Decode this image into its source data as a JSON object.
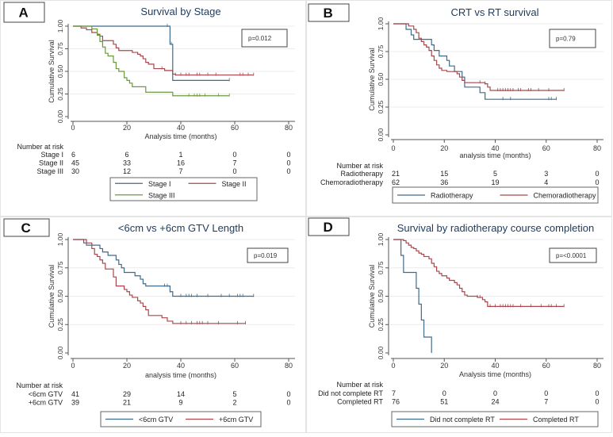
{
  "chart_data": [
    {
      "type": "line",
      "panel_label": "A",
      "title": "Survival by Stage",
      "xlabel": "Analysis time (months)",
      "ylabel": "Cumulative Survival",
      "xlim": [
        0,
        80
      ],
      "ylim": [
        0,
        1
      ],
      "xticks": [
        "0",
        "20",
        "40",
        "60",
        "80"
      ],
      "yticks": [
        "0.00",
        "0.25",
        "0.50",
        "0.75",
        "1.00"
      ],
      "p_value": "p=0.012",
      "risk_title": "Number at risk",
      "series": [
        {
          "name": "Stage I",
          "color": "#3f6b8c",
          "end": 58,
          "steps": [
            [
              0,
              1
            ],
            [
              36,
              0.8
            ],
            [
              37,
              0.4
            ]
          ],
          "censored": [
            35,
            36.5,
            58
          ],
          "at_risk": [
            "6",
            "6",
            "1",
            "0",
            "0"
          ]
        },
        {
          "name": "Stage II",
          "color": "#a9474c",
          "end": 67,
          "steps": [
            [
              0,
              1
            ],
            [
              3,
              0.98
            ],
            [
              5,
              0.96
            ],
            [
              7,
              0.93
            ],
            [
              9,
              0.91
            ],
            [
              10,
              0.89
            ],
            [
              11,
              0.84
            ],
            [
              15,
              0.8
            ],
            [
              16,
              0.76
            ],
            [
              17,
              0.73
            ],
            [
              22,
              0.71
            ],
            [
              24,
              0.69
            ],
            [
              25,
              0.67
            ],
            [
              26,
              0.64
            ],
            [
              27,
              0.6
            ],
            [
              28,
              0.58
            ],
            [
              30,
              0.53
            ],
            [
              34,
              0.51
            ],
            [
              37,
              0.47
            ],
            [
              38,
              0.46
            ]
          ],
          "censored": [
            33,
            38,
            40,
            42,
            43,
            46,
            47,
            50,
            53,
            62,
            63,
            65,
            67
          ],
          "at_risk": [
            "45",
            "33",
            "16",
            "7",
            "0"
          ]
        },
        {
          "name": "Stage III",
          "color": "#6b9a3c",
          "end": 58,
          "steps": [
            [
              0,
              1
            ],
            [
              7,
              0.97
            ],
            [
              9,
              0.9
            ],
            [
              10,
              0.83
            ],
            [
              11,
              0.77
            ],
            [
              12,
              0.7
            ],
            [
              13,
              0.67
            ],
            [
              15,
              0.6
            ],
            [
              16,
              0.53
            ],
            [
              17,
              0.5
            ],
            [
              19,
              0.43
            ],
            [
              20,
              0.4
            ],
            [
              21,
              0.37
            ],
            [
              22,
              0.33
            ],
            [
              27,
              0.27
            ],
            [
              37,
              0.23
            ]
          ],
          "censored": [
            43,
            45,
            46,
            47,
            49,
            54,
            58
          ],
          "at_risk": [
            "30",
            "12",
            "7",
            "0",
            "0"
          ]
        }
      ]
    },
    {
      "type": "line",
      "panel_label": "B",
      "title": "CRT vs RT survival",
      "xlabel": "analysis time (months)",
      "ylabel": "Cumulative Survival",
      "xlim": [
        0,
        80
      ],
      "ylim": [
        0,
        1
      ],
      "xticks": [
        "0",
        "20",
        "40",
        "60",
        "80"
      ],
      "yticks": [
        "0.00",
        "0.25",
        "0.50",
        "0.75",
        "1.00"
      ],
      "p_value": "p=0.79",
      "risk_title": "Number at risk",
      "series": [
        {
          "name": "Radiotherapy",
          "color": "#3f6b8c",
          "end": 64,
          "steps": [
            [
              0,
              1
            ],
            [
              5,
              0.95
            ],
            [
              7,
              0.9
            ],
            [
              8,
              0.86
            ],
            [
              15,
              0.81
            ],
            [
              16,
              0.76
            ],
            [
              18,
              0.71
            ],
            [
              21,
              0.67
            ],
            [
              22,
              0.62
            ],
            [
              24,
              0.57
            ],
            [
              27,
              0.52
            ],
            [
              28,
              0.43
            ],
            [
              34,
              0.38
            ],
            [
              36,
              0.32
            ]
          ],
          "censored": [
            43,
            46,
            61,
            62,
            64
          ],
          "at_risk": [
            "21",
            "15",
            "5",
            "3",
            "0"
          ]
        },
        {
          "name": "Chemoradiotherapy",
          "color": "#a9474c",
          "end": 67,
          "steps": [
            [
              0,
              1
            ],
            [
              6,
              0.98
            ],
            [
              8,
              0.95
            ],
            [
              9,
              0.92
            ],
            [
              10,
              0.87
            ],
            [
              11,
              0.84
            ],
            [
              12,
              0.81
            ],
            [
              13,
              0.79
            ],
            [
              14,
              0.76
            ],
            [
              15,
              0.71
            ],
            [
              16,
              0.67
            ],
            [
              17,
              0.63
            ],
            [
              18,
              0.6
            ],
            [
              19,
              0.58
            ],
            [
              21,
              0.57
            ],
            [
              25,
              0.55
            ],
            [
              26,
              0.52
            ],
            [
              27,
              0.49
            ],
            [
              28,
              0.47
            ],
            [
              36,
              0.46
            ],
            [
              37,
              0.43
            ],
            [
              38,
              0.4
            ]
          ],
          "censored": [
            34,
            36,
            41,
            42,
            43,
            44,
            45,
            46,
            47,
            49,
            50,
            53,
            54,
            57,
            61,
            67
          ],
          "at_risk": [
            "62",
            "36",
            "19",
            "4",
            "0"
          ]
        }
      ]
    },
    {
      "type": "line",
      "panel_label": "C",
      "title": "<6cm vs +6cm GTV Length",
      "xlabel": "analysis time (months)",
      "ylabel": "Cumulative Survival",
      "xlim": [
        0,
        80
      ],
      "ylim": [
        0,
        1
      ],
      "xticks": [
        "0",
        "20",
        "40",
        "60",
        "80"
      ],
      "yticks": [
        "0.00",
        "0.25",
        "0.50",
        "0.75",
        "1.00"
      ],
      "p_value": "p=0.019",
      "risk_title": "Number at risk",
      "series": [
        {
          "name": "<6cm GTV",
          "color": "#3f6b8c",
          "end": 67,
          "steps": [
            [
              0,
              1
            ],
            [
              4,
              0.97
            ],
            [
              5,
              0.95
            ],
            [
              10,
              0.92
            ],
            [
              11,
              0.89
            ],
            [
              13,
              0.86
            ],
            [
              16,
              0.82
            ],
            [
              17,
              0.78
            ],
            [
              18,
              0.75
            ],
            [
              19,
              0.71
            ],
            [
              23,
              0.68
            ],
            [
              25,
              0.65
            ],
            [
              26,
              0.61
            ],
            [
              27,
              0.59
            ],
            [
              36,
              0.54
            ],
            [
              37,
              0.5
            ]
          ],
          "censored": [
            34,
            35,
            36,
            40,
            42,
            43,
            44,
            46,
            50,
            55,
            58,
            61,
            62,
            63,
            67
          ],
          "at_risk": [
            "41",
            "29",
            "14",
            "5",
            "0"
          ]
        },
        {
          "name": "+6cm GTV",
          "color": "#a9474c",
          "end": 64,
          "steps": [
            [
              0,
              1
            ],
            [
              5,
              0.97
            ],
            [
              7,
              0.92
            ],
            [
              8,
              0.87
            ],
            [
              9,
              0.85
            ],
            [
              10,
              0.82
            ],
            [
              11,
              0.79
            ],
            [
              12,
              0.74
            ],
            [
              15,
              0.67
            ],
            [
              16,
              0.59
            ],
            [
              19,
              0.56
            ],
            [
              20,
              0.54
            ],
            [
              21,
              0.51
            ],
            [
              22,
              0.49
            ],
            [
              24,
              0.46
            ],
            [
              25,
              0.44
            ],
            [
              26,
              0.41
            ],
            [
              27,
              0.38
            ],
            [
              28,
              0.33
            ],
            [
              33,
              0.31
            ],
            [
              35,
              0.28
            ],
            [
              37,
              0.26
            ]
          ],
          "censored": [
            40,
            42,
            44,
            46,
            47,
            48,
            50,
            54,
            61,
            64
          ],
          "at_risk": [
            "39",
            "21",
            "9",
            "2",
            "0"
          ]
        }
      ]
    },
    {
      "type": "line",
      "panel_label": "D",
      "title": "Survival by radiotherapy course completion",
      "xlabel": "Analysis time (months)",
      "ylabel": "Cumulative Survival",
      "xlim": [
        0,
        80
      ],
      "ylim": [
        0,
        1
      ],
      "xticks": [
        "0",
        "20",
        "40",
        "60",
        "80"
      ],
      "yticks": [
        "0.00",
        "0.25",
        "0.50",
        "0.75",
        "1.00"
      ],
      "p_value": "p=<0.0001",
      "risk_title": "Number at risk",
      "series": [
        {
          "name": "Did not complete RT",
          "color": "#3f6b8c",
          "end": 15,
          "steps": [
            [
              0,
              1
            ],
            [
              3,
              0.86
            ],
            [
              4,
              0.71
            ],
            [
              9,
              0.57
            ],
            [
              10,
              0.43
            ],
            [
              11,
              0.29
            ],
            [
              12,
              0.14
            ],
            [
              15,
              0
            ]
          ],
          "censored": [],
          "at_risk": [
            "7",
            "0",
            "0",
            "0",
            "0"
          ]
        },
        {
          "name": "Completed RT",
          "color": "#a9474c",
          "end": 67,
          "steps": [
            [
              0,
              1
            ],
            [
              4,
              0.99
            ],
            [
              5,
              0.97
            ],
            [
              6,
              0.95
            ],
            [
              7,
              0.93
            ],
            [
              8,
              0.92
            ],
            [
              9,
              0.9
            ],
            [
              10,
              0.88
            ],
            [
              11,
              0.87
            ],
            [
              12,
              0.85
            ],
            [
              14,
              0.83
            ],
            [
              15,
              0.79
            ],
            [
              16,
              0.76
            ],
            [
              17,
              0.72
            ],
            [
              18,
              0.7
            ],
            [
              19,
              0.68
            ],
            [
              21,
              0.66
            ],
            [
              22,
              0.64
            ],
            [
              24,
              0.62
            ],
            [
              25,
              0.6
            ],
            [
              26,
              0.57
            ],
            [
              27,
              0.54
            ],
            [
              28,
              0.51
            ],
            [
              29,
              0.5
            ],
            [
              33,
              0.49
            ],
            [
              35,
              0.47
            ],
            [
              36,
              0.45
            ],
            [
              37,
              0.41
            ]
          ],
          "censored": [
            33,
            34,
            38,
            40,
            42,
            43,
            44,
            45,
            46,
            47,
            50,
            54,
            58,
            61,
            62,
            64,
            67
          ],
          "at_risk": [
            "76",
            "51",
            "24",
            "7",
            "0"
          ]
        }
      ]
    }
  ]
}
